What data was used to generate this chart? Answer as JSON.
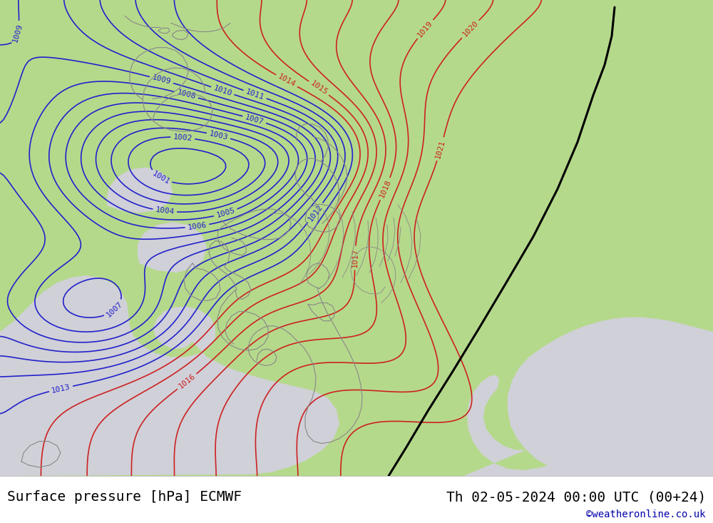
{
  "title_left": "Surface pressure [hPa] ECMWF",
  "title_right": "Th 02-05-2024 00:00 UTC (00+24)",
  "watermark": "©weatheronline.co.uk",
  "land_color": "#b5d98b",
  "sea_color": "#d0d0d8",
  "isobar_blue": "#2222cc",
  "isobar_red": "#cc2222",
  "isobar_black": "#000000",
  "coast_color": "#888888",
  "title_fontsize": 14,
  "watermark_fontsize": 10,
  "bottom_bar_color": "#ffffff",
  "figsize": [
    10.0,
    7.33
  ],
  "dpi": 100
}
